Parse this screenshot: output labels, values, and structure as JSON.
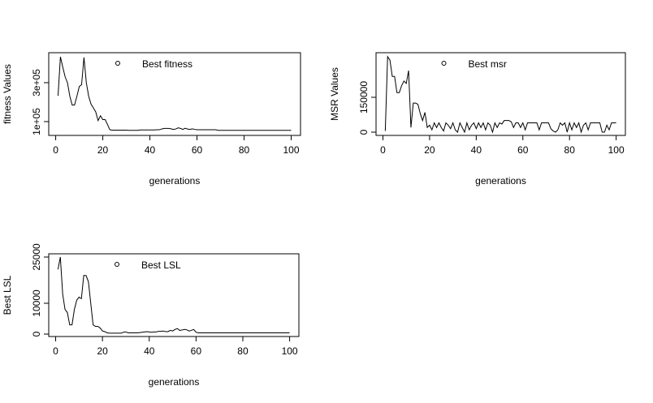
{
  "chart_data": [
    {
      "type": "line",
      "xlabel": "generations",
      "ylabel": "fitness Values",
      "legend": "top",
      "x": [
        1,
        2,
        3,
        4,
        5,
        6,
        7,
        8,
        9,
        10,
        11,
        12,
        13,
        14,
        15,
        16,
        17,
        18,
        19,
        20,
        21,
        22,
        23,
        24,
        25,
        26,
        27,
        28,
        29,
        30,
        31,
        32,
        33,
        34,
        35,
        36,
        37,
        38,
        39,
        40,
        41,
        42,
        43,
        44,
        45,
        46,
        47,
        48,
        49,
        50,
        51,
        52,
        53,
        54,
        55,
        56,
        57,
        58,
        59,
        60,
        61,
        62,
        63,
        64,
        65,
        66,
        67,
        68,
        69,
        70,
        71,
        72,
        73,
        74,
        75,
        76,
        77,
        78,
        79,
        80,
        81,
        82,
        83,
        84,
        85,
        86,
        87,
        88,
        89,
        90,
        91,
        92,
        93,
        94,
        95,
        96,
        97,
        98,
        99,
        100
      ],
      "series": [
        {
          "name": "Best fitness",
          "color": "#000000",
          "values": [
            233000,
            433000,
            380000,
            330000,
            300000,
            230000,
            185000,
            185000,
            230000,
            280000,
            290000,
            430000,
            300000,
            230000,
            190000,
            170000,
            150000,
            105000,
            130000,
            110000,
            110000,
            85000,
            58000,
            56000,
            56000,
            56000,
            56000,
            56000,
            56000,
            56000,
            55000,
            55000,
            55000,
            55000,
            55000,
            57000,
            57000,
            57000,
            57000,
            57000,
            57000,
            57000,
            58000,
            58000,
            62000,
            65000,
            65000,
            65000,
            63000,
            60000,
            62000,
            68000,
            65000,
            60000,
            66000,
            62000,
            60000,
            63000,
            60000,
            58000,
            58000,
            58000,
            58000,
            58000,
            58000,
            58000,
            58000,
            58000,
            55000,
            55000,
            55000,
            55000,
            55000,
            55000,
            55000,
            55000,
            55000,
            55000,
            55000,
            55000,
            55000,
            55000,
            55000,
            55000,
            55000,
            55000,
            55000,
            55000,
            55000,
            55000,
            55000,
            55000,
            55000,
            55000,
            55000,
            55000,
            55000,
            55000,
            55000,
            55000
          ]
        }
      ],
      "xlim": [
        -2.96,
        103.96
      ],
      "xticks": [
        0,
        20,
        40,
        60,
        80,
        100
      ],
      "ylim": [
        29000,
        454000
      ],
      "yticks": [
        {
          "value": 100000,
          "label": "1e+05"
        },
        {
          "value": 300000,
          "label": "3e+05"
        }
      ]
    },
    {
      "type": "line",
      "xlabel": "generations",
      "ylabel": "MSR Values",
      "legend": "top",
      "x": [
        1,
        2,
        3,
        4,
        5,
        6,
        7,
        8,
        9,
        10,
        11,
        12,
        13,
        14,
        15,
        16,
        17,
        18,
        19,
        20,
        21,
        22,
        23,
        24,
        25,
        26,
        27,
        28,
        29,
        30,
        31,
        32,
        33,
        34,
        35,
        36,
        37,
        38,
        39,
        40,
        41,
        42,
        43,
        44,
        45,
        46,
        47,
        48,
        49,
        50,
        51,
        52,
        53,
        54,
        55,
        56,
        57,
        58,
        59,
        60,
        61,
        62,
        63,
        64,
        65,
        66,
        67,
        68,
        69,
        70,
        71,
        72,
        73,
        74,
        75,
        76,
        77,
        78,
        79,
        80,
        81,
        82,
        83,
        84,
        85,
        86,
        87,
        88,
        89,
        90,
        91,
        92,
        93,
        94,
        95,
        96,
        97,
        98,
        99,
        100
      ],
      "series": [
        {
          "name": "Best msr",
          "color": "#000000",
          "values": [
            5000,
            325000,
            310000,
            240000,
            240000,
            170000,
            170000,
            200000,
            220000,
            210000,
            265000,
            20000,
            125000,
            125000,
            120000,
            80000,
            50000,
            85000,
            20000,
            30000,
            10000,
            40000,
            20000,
            40000,
            20000,
            5000,
            40000,
            30000,
            15000,
            40000,
            10000,
            0,
            40000,
            20000,
            0,
            40000,
            10000,
            30000,
            40000,
            15000,
            40000,
            20000,
            40000,
            10000,
            40000,
            30000,
            0,
            40000,
            20000,
            40000,
            35000,
            50000,
            50000,
            50000,
            45000,
            20000,
            40000,
            40000,
            20000,
            40000,
            10000,
            40000,
            40000,
            40000,
            40000,
            40000,
            10000,
            40000,
            40000,
            40000,
            40000,
            15000,
            5000,
            0,
            10000,
            40000,
            30000,
            40000,
            0,
            40000,
            10000,
            40000,
            20000,
            40000,
            0,
            30000,
            40000,
            10000,
            40000,
            40000,
            40000,
            40000,
            40000,
            0,
            0,
            30000,
            10000,
            40000,
            40000,
            40000
          ]
        }
      ],
      "xlim": [
        -2.96,
        103.96
      ],
      "xticks": [
        0,
        20,
        40,
        60,
        80,
        100
      ],
      "ylim": [
        -14000,
        342000
      ],
      "yticks": [
        0,
        150000
      ]
    },
    {
      "type": "line",
      "xlabel": "generations",
      "ylabel": "Best LSL",
      "legend": "top",
      "x": [
        1,
        2,
        3,
        4,
        5,
        6,
        7,
        8,
        9,
        10,
        11,
        12,
        13,
        14,
        15,
        16,
        17,
        18,
        19,
        20,
        21,
        22,
        23,
        24,
        25,
        26,
        27,
        28,
        29,
        30,
        31,
        32,
        33,
        34,
        35,
        36,
        37,
        38,
        39,
        40,
        41,
        42,
        43,
        44,
        45,
        46,
        47,
        48,
        49,
        50,
        51,
        52,
        53,
        54,
        55,
        56,
        57,
        58,
        59,
        60,
        61,
        62,
        63,
        64,
        65,
        66,
        67,
        68,
        69,
        70,
        71,
        72,
        73,
        74,
        75,
        76,
        77,
        78,
        79,
        80,
        81,
        82,
        83,
        84,
        85,
        86,
        87,
        88,
        89,
        90,
        91,
        92,
        93,
        94,
        95,
        96,
        97,
        98,
        99,
        100
      ],
      "series": [
        {
          "name": "Best LSL",
          "color": "#000000",
          "values": [
            21000,
            25000,
            13000,
            8000,
            7000,
            3000,
            3000,
            8000,
            11000,
            12000,
            11500,
            19000,
            19000,
            17000,
            10000,
            3000,
            2500,
            2500,
            2000,
            1000,
            800,
            400,
            300,
            300,
            300,
            300,
            300,
            300,
            600,
            700,
            400,
            400,
            400,
            400,
            400,
            500,
            600,
            700,
            800,
            700,
            600,
            700,
            700,
            900,
            900,
            1000,
            800,
            800,
            1200,
            1000,
            1500,
            1800,
            1200,
            1300,
            1500,
            1400,
            1000,
            1200,
            1500,
            600,
            400,
            400,
            400,
            400,
            400,
            400,
            400,
            400,
            400,
            400,
            400,
            400,
            400,
            400,
            400,
            400,
            400,
            400,
            400,
            400,
            400,
            400,
            400,
            400,
            400,
            400,
            400,
            400,
            400,
            400,
            400,
            400,
            400,
            400,
            400,
            400,
            400,
            400,
            400,
            400
          ]
        }
      ],
      "xlim": [
        -2.96,
        103.96
      ],
      "xticks": [
        0,
        20,
        40,
        60,
        80,
        100
      ],
      "ylim": [
        -790,
        26050
      ],
      "yticks": [
        0,
        10000,
        25000
      ]
    }
  ]
}
